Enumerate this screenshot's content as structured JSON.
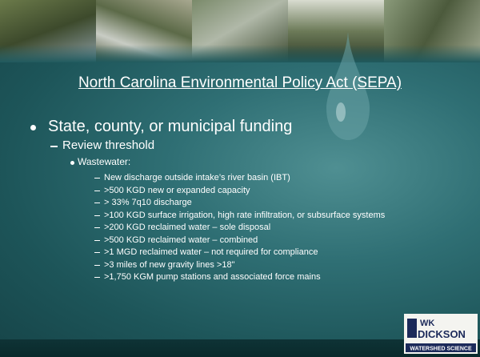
{
  "slide": {
    "title": "North Carolina Environmental Policy Act (SEPA)",
    "level1": "State, county, or municipal funding",
    "level2": "Review threshold",
    "level3": "Wastewater:",
    "items": [
      "New discharge outside intake’s river basin (IBT)",
      ">500 KGD new or expanded capacity",
      "> 33% 7q10 discharge",
      ">100 KGD surface irrigation, high rate infiltration, or subsurface systems",
      ">200 KGD reclaimed water – sole disposal",
      ">500 KGD reclaimed water – combined",
      ">1 MGD reclaimed water – not required for compliance",
      ">3 miles of new gravity lines >18\"",
      ">1,750 KGM pump stations and associated force mains"
    ],
    "logo": {
      "top": "WK",
      "name": "DICKSON",
      "tagline": "WATERSHED SCIENCE"
    }
  }
}
